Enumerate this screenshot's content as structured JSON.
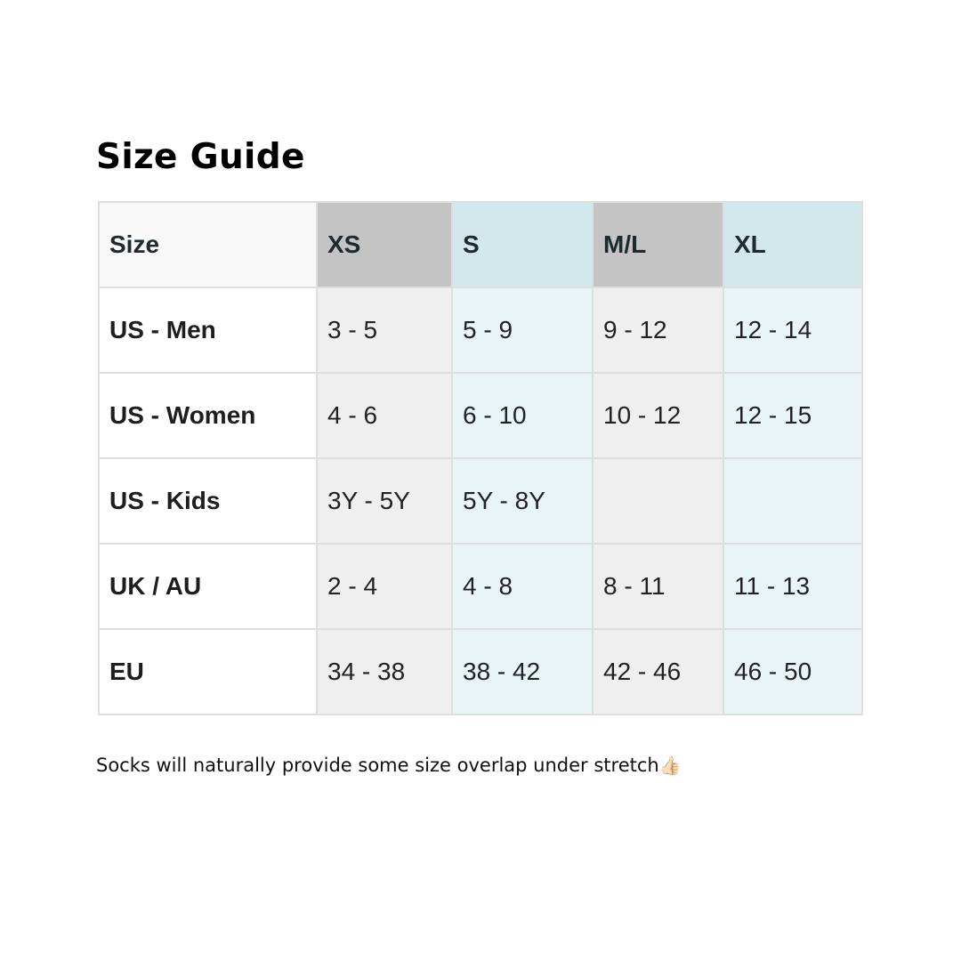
{
  "title": "Size Guide",
  "table": {
    "header": [
      "Size",
      "XS",
      "S",
      "M/L",
      "XL"
    ],
    "rows": [
      [
        "US - Men",
        "3 - 5",
        "5 - 9",
        "9 - 12",
        "12 - 14"
      ],
      [
        "US - Women",
        "4 - 6",
        "6 - 10",
        "10 - 12",
        "12 - 15"
      ],
      [
        "US - Kids",
        "3Y - 5Y",
        "5Y - 8Y",
        "",
        ""
      ],
      [
        "UK / AU",
        "2 - 4",
        "4 - 8",
        "8 - 11",
        "11 - 13"
      ],
      [
        "EU",
        "34 - 38",
        "38 - 42",
        "42 - 46",
        "46 - 50"
      ]
    ]
  },
  "note": "Socks will naturally provide some size overlap under stretch",
  "note_emoji": "👍🏻",
  "colors": {
    "gray_header": "#c4c4c4",
    "blue_header": "#d2e8ec",
    "gray_cell": "#efefef",
    "blue_cell": "#e8f4f6"
  }
}
